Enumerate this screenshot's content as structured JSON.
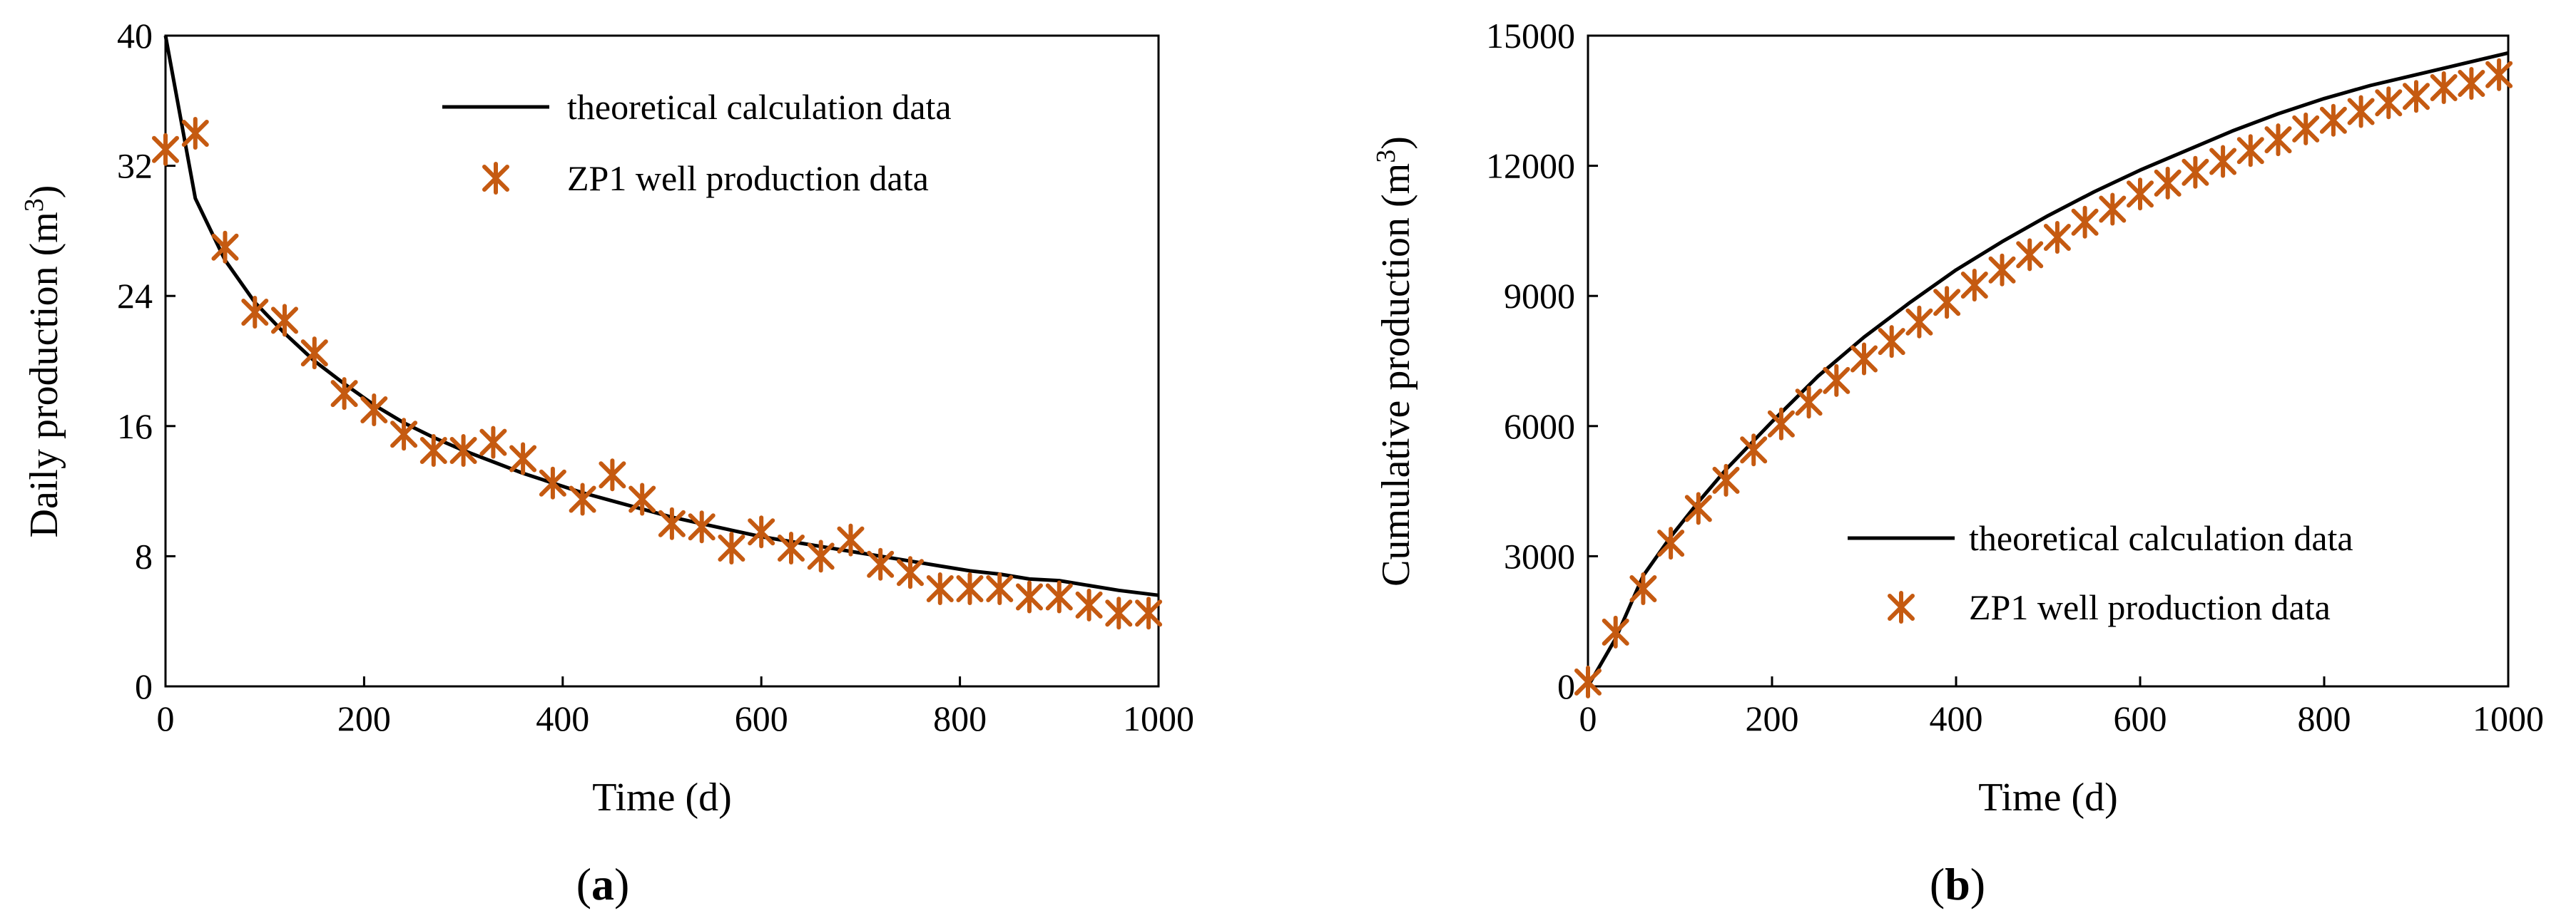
{
  "colors": {
    "marker": "#c55a11",
    "line": "#000000"
  },
  "chart_data": [
    {
      "type": "line",
      "panel_label": "(a)",
      "panel_letter": "a",
      "xlabel": "Time (d)",
      "ylabel": "Daily production (m3)",
      "ylabel_base": "Daily production (m",
      "ylabel_sup": "3",
      "ylabel_close": ")",
      "xlim": [
        0,
        1000
      ],
      "ylim": [
        0,
        40
      ],
      "xticks": [
        0,
        200,
        400,
        600,
        800,
        1000
      ],
      "yticks": [
        0,
        8,
        16,
        24,
        32,
        40
      ],
      "legend_position": "top-right",
      "series": [
        {
          "name": "theoretical calculation data",
          "kind": "line",
          "x": [
            0,
            30,
            60,
            90,
            120,
            150,
            180,
            210,
            240,
            270,
            300,
            330,
            360,
            390,
            420,
            450,
            480,
            510,
            540,
            570,
            600,
            630,
            660,
            690,
            720,
            750,
            780,
            810,
            840,
            870,
            900,
            930,
            960,
            1000
          ],
          "y": [
            40,
            30,
            26.2,
            23.6,
            21.7,
            20.0,
            18.6,
            17.3,
            16.2,
            15.3,
            14.5,
            13.8,
            13.1,
            12.5,
            11.9,
            11.4,
            10.9,
            10.4,
            10.0,
            9.6,
            9.2,
            8.9,
            8.6,
            8.3,
            8.0,
            7.7,
            7.4,
            7.1,
            6.9,
            6.6,
            6.5,
            6.2,
            5.9,
            5.6
          ]
        },
        {
          "name": "ZP1 well production data",
          "kind": "marker",
          "x": [
            0,
            30,
            60,
            90,
            120,
            150,
            180,
            210,
            240,
            270,
            300,
            330,
            360,
            390,
            420,
            450,
            480,
            510,
            540,
            570,
            600,
            630,
            660,
            690,
            720,
            750,
            780,
            810,
            840,
            870,
            900,
            930,
            960,
            990
          ],
          "y": [
            33,
            34,
            27,
            23,
            22.5,
            20.5,
            18,
            17,
            15.5,
            14.5,
            14.5,
            15,
            14,
            12.5,
            11.5,
            13,
            11.5,
            10,
            9.8,
            8.5,
            9.5,
            8.5,
            8,
            9,
            7.5,
            7,
            6,
            6,
            6,
            5.5,
            5.5,
            5,
            4.5,
            4.5
          ]
        }
      ]
    },
    {
      "type": "line",
      "panel_label": "(b)",
      "panel_letter": "b",
      "xlabel": "Time (d)",
      "ylabel": "Cumulative production (m3)",
      "ylabel_base": "Cumulative production (m",
      "ylabel_sup": "3",
      "ylabel_close": ")",
      "xlim": [
        0,
        1000
      ],
      "ylim": [
        0,
        15000
      ],
      "xticks": [
        0,
        200,
        400,
        600,
        800,
        1000
      ],
      "yticks": [
        0,
        3000,
        6000,
        9000,
        12000,
        15000
      ],
      "legend_position": "bottom-right",
      "series": [
        {
          "name": "theoretical calculation data",
          "kind": "line",
          "x": [
            0,
            30,
            60,
            90,
            120,
            150,
            200,
            250,
            300,
            350,
            400,
            450,
            500,
            550,
            600,
            650,
            700,
            750,
            800,
            850,
            900,
            950,
            1000
          ],
          "y": [
            0,
            1100,
            2550,
            3450,
            4250,
            5000,
            6100,
            7150,
            8050,
            8850,
            9600,
            10250,
            10850,
            11400,
            11900,
            12350,
            12800,
            13200,
            13550,
            13850,
            14100,
            14350,
            14600
          ]
        },
        {
          "name": "ZP1 well production data",
          "kind": "marker",
          "x": [
            0,
            30,
            60,
            90,
            120,
            150,
            180,
            210,
            240,
            270,
            300,
            330,
            360,
            390,
            420,
            450,
            480,
            510,
            540,
            570,
            600,
            630,
            660,
            690,
            720,
            750,
            780,
            810,
            840,
            870,
            900,
            930,
            960,
            990
          ],
          "y": [
            100,
            1250,
            2250,
            3300,
            4100,
            4750,
            5450,
            6050,
            6550,
            7050,
            7550,
            7950,
            8400,
            8850,
            9250,
            9600,
            9950,
            10350,
            10700,
            11000,
            11350,
            11600,
            11850,
            12100,
            12350,
            12600,
            12850,
            13050,
            13250,
            13450,
            13600,
            13800,
            13900,
            14100
          ]
        }
      ]
    }
  ]
}
